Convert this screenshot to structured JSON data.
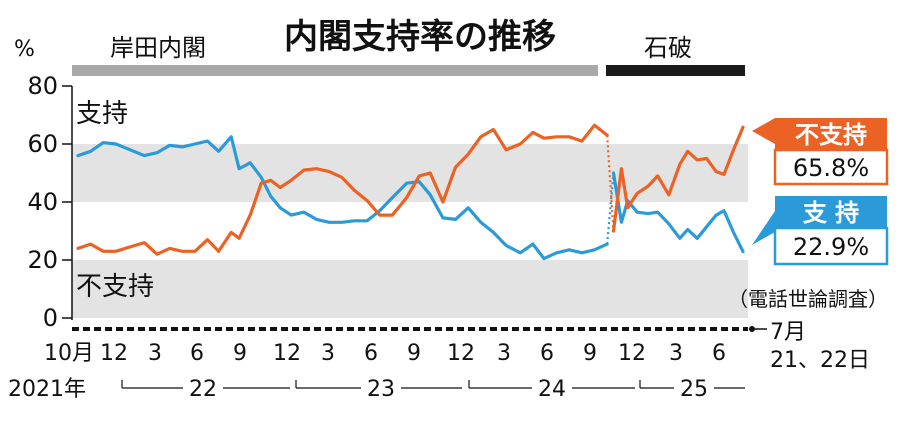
{
  "chart_data": {
    "type": "line",
    "title": "内閣支持率の推移",
    "ylabel": "%",
    "ylim": [
      0,
      80
    ],
    "yticks": [
      "0",
      "20",
      "40",
      "60",
      "80"
    ],
    "grid": "bands",
    "source_note": "（電話世論調査）",
    "cabinets": [
      {
        "name": "岸田内閣"
      },
      {
        "name": "石破"
      }
    ],
    "x_month_ticks": [
      "10月",
      "12",
      "3",
      "6",
      "9",
      "12",
      "3",
      "6",
      "9",
      "12",
      "3",
      "6",
      "9",
      "12",
      "3",
      "6"
    ],
    "x_year_labels": [
      "2021年",
      "22",
      "23",
      "24",
      "25"
    ],
    "x_end_label": [
      "7月",
      "21、22日"
    ],
    "series": [
      {
        "name": "支持",
        "legend_label": "支 持",
        "last_value_label": "22.9%",
        "color": "#2a9bd8",
        "segments": [
          [
            [
              2021.77,
              56.0
            ],
            [
              2021.85,
              57.5
            ],
            [
              2021.93,
              60.5
            ],
            [
              2022.01,
              60.0
            ],
            [
              2022.1,
              58.0
            ],
            [
              2022.19,
              56.0
            ],
            [
              2022.27,
              57.0
            ],
            [
              2022.35,
              59.5
            ],
            [
              2022.43,
              59.0
            ],
            [
              2022.51,
              60.0
            ],
            [
              2022.59,
              61.0
            ],
            [
              2022.66,
              57.5
            ],
            [
              2022.74,
              62.5
            ],
            [
              2022.79,
              51.5
            ],
            [
              2022.86,
              53.5
            ],
            [
              2022.93,
              48.5
            ],
            [
              2022.99,
              42.0
            ],
            [
              2023.05,
              38.0
            ],
            [
              2023.12,
              35.5
            ],
            [
              2023.2,
              36.5
            ],
            [
              2023.28,
              34.0
            ],
            [
              2023.36,
              33.0
            ],
            [
              2023.44,
              33.0
            ],
            [
              2023.52,
              33.5
            ],
            [
              2023.6,
              33.5
            ],
            [
              2023.68,
              37.0
            ],
            [
              2023.76,
              41.5
            ],
            [
              2023.85,
              46.5
            ],
            [
              2023.93,
              47.0
            ],
            [
              2024.0,
              42.5
            ],
            [
              2024.08,
              34.5
            ],
            [
              2024.16,
              34.0
            ],
            [
              2024.24,
              38.0
            ],
            [
              2024.32,
              33.0
            ],
            [
              2024.4,
              29.5
            ],
            [
              2024.48,
              25.0
            ],
            [
              2024.57,
              22.5
            ],
            [
              2024.65,
              25.5
            ],
            [
              2024.72,
              20.5
            ],
            [
              2024.8,
              22.5
            ],
            [
              2024.88,
              23.5
            ],
            [
              2024.96,
              22.5
            ],
            [
              2025.04,
              23.5
            ],
            [
              2025.12,
              25.5
            ]
          ],
          [
            [
              2025.16,
              50.0
            ],
            [
              2025.21,
              33.0
            ],
            [
              2025.25,
              40.5
            ],
            [
              2025.31,
              36.5
            ],
            [
              2025.38,
              36.0
            ],
            [
              2025.44,
              36.5
            ],
            [
              2025.51,
              32.5
            ],
            [
              2025.58,
              27.5
            ],
            [
              2025.63,
              30.5
            ],
            [
              2025.69,
              27.5
            ],
            [
              2025.75,
              31.5
            ],
            [
              2025.81,
              35.5
            ],
            [
              2025.86,
              37.0
            ],
            [
              2025.92,
              29.5
            ],
            [
              2025.98,
              22.9
            ]
          ]
        ],
        "dotted_connectors": [
          [
            [
              2025.12,
              25.5
            ],
            [
              2025.16,
              50.0
            ]
          ]
        ]
      },
      {
        "name": "不支持",
        "legend_label": "不支持",
        "last_value_label": "65.8%",
        "color": "#ec6224",
        "segments": [
          [
            [
              2021.77,
              24.0
            ],
            [
              2021.85,
              25.5
            ],
            [
              2021.93,
              23.0
            ],
            [
              2022.01,
              23.0
            ],
            [
              2022.1,
              24.5
            ],
            [
              2022.19,
              26.0
            ],
            [
              2022.27,
              22.0
            ],
            [
              2022.35,
              24.0
            ],
            [
              2022.43,
              23.0
            ],
            [
              2022.51,
              23.0
            ],
            [
              2022.59,
              27.0
            ],
            [
              2022.66,
              23.0
            ],
            [
              2022.74,
              29.5
            ],
            [
              2022.79,
              27.5
            ],
            [
              2022.86,
              35.5
            ],
            [
              2022.93,
              46.5
            ],
            [
              2022.99,
              47.5
            ],
            [
              2023.05,
              45.0
            ],
            [
              2023.12,
              47.5
            ],
            [
              2023.2,
              51.0
            ],
            [
              2023.28,
              51.5
            ],
            [
              2023.36,
              50.5
            ],
            [
              2023.44,
              48.5
            ],
            [
              2023.52,
              44.0
            ],
            [
              2023.6,
              40.5
            ],
            [
              2023.68,
              35.5
            ],
            [
              2023.76,
              35.5
            ],
            [
              2023.85,
              41.5
            ],
            [
              2023.93,
              49.0
            ],
            [
              2024.0,
              50.0
            ],
            [
              2024.08,
              40.0
            ],
            [
              2024.16,
              52.0
            ],
            [
              2024.24,
              56.5
            ],
            [
              2024.32,
              62.5
            ],
            [
              2024.4,
              65.0
            ],
            [
              2024.48,
              58.0
            ],
            [
              2024.57,
              60.0
            ],
            [
              2024.65,
              64.0
            ],
            [
              2024.72,
              62.0
            ],
            [
              2024.8,
              62.5
            ],
            [
              2024.88,
              62.5
            ],
            [
              2024.96,
              61.0
            ],
            [
              2025.04,
              66.5
            ],
            [
              2025.12,
              63.0
            ]
          ],
          [
            [
              2025.16,
              30.0
            ],
            [
              2025.21,
              51.5
            ],
            [
              2025.25,
              38.0
            ],
            [
              2025.31,
              43.0
            ],
            [
              2025.38,
              45.5
            ],
            [
              2025.44,
              49.0
            ],
            [
              2025.51,
              42.5
            ],
            [
              2025.58,
              53.0
            ],
            [
              2025.63,
              57.5
            ],
            [
              2025.69,
              54.5
            ],
            [
              2025.75,
              55.0
            ],
            [
              2025.81,
              50.5
            ],
            [
              2025.86,
              49.5
            ],
            [
              2025.92,
              58.0
            ],
            [
              2025.98,
              65.8
            ]
          ]
        ],
        "dotted_connectors": [
          [
            [
              2025.12,
              63.0
            ],
            [
              2025.16,
              30.0
            ]
          ]
        ]
      }
    ]
  }
}
